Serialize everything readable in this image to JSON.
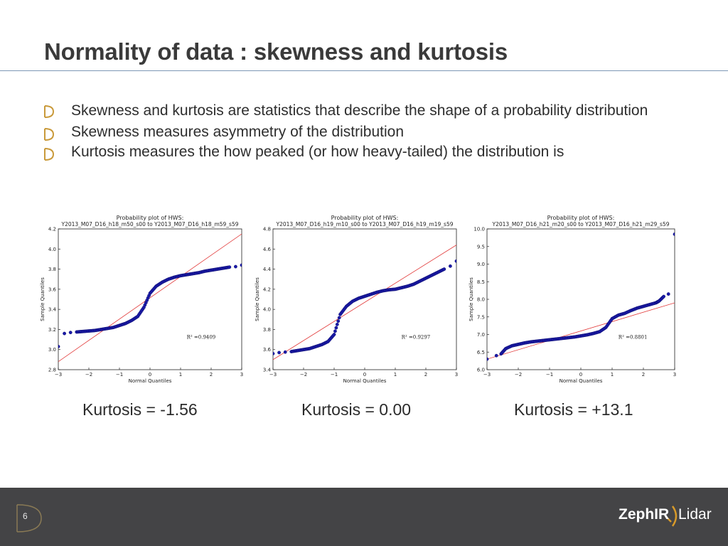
{
  "slide": {
    "title": "Normality of data : skewness and kurtosis",
    "bullets": [
      "Skewness and kurtosis are statistics that describe the shape of a probability distribution",
      "Skewness measures asymmetry of the distribution",
      "Kurtosis measures the how peaked (or how heavy-tailed) the distribution is"
    ],
    "page_number": "6",
    "logo": {
      "brand": "ZephIR",
      "product": "Lidar"
    }
  },
  "kurtosis_labels": [
    "Kurtosis = -1.56",
    "Kurtosis = 0.00",
    "Kurtosis = +13.1"
  ],
  "chart_data": [
    {
      "type": "scatter",
      "title": "Probability plot of HWS:",
      "subtitle": "Y2013_M07_D16_h18_m50_s00 to Y2013_M07_D16_h18_m59_s59",
      "xlabel": "Normal Quantiles",
      "ylabel": "Sample Quantiles",
      "xlim": [
        -3,
        3
      ],
      "ylim": [
        2.8,
        4.2
      ],
      "xticks": [
        "−3",
        "−2",
        "−1",
        "0",
        "1",
        "2",
        "3"
      ],
      "yticks": [
        "2.8",
        "3.0",
        "3.2",
        "3.4",
        "3.6",
        "3.8",
        "4.0",
        "4.2"
      ],
      "r2_label": "R² =0.9409",
      "fit_line": [
        [
          -3,
          2.88
        ],
        [
          3,
          4.15
        ]
      ],
      "points": [
        [
          -3.0,
          3.03
        ],
        [
          -2.8,
          3.16
        ],
        [
          -2.6,
          3.17
        ],
        [
          -2.4,
          3.175
        ],
        [
          -2.2,
          3.18
        ],
        [
          -2.0,
          3.185
        ],
        [
          -1.8,
          3.19
        ],
        [
          -1.6,
          3.2
        ],
        [
          -1.4,
          3.21
        ],
        [
          -1.2,
          3.22
        ],
        [
          -1.0,
          3.24
        ],
        [
          -0.8,
          3.26
        ],
        [
          -0.6,
          3.29
        ],
        [
          -0.4,
          3.33
        ],
        [
          -0.2,
          3.42
        ],
        [
          0.0,
          3.56
        ],
        [
          0.2,
          3.63
        ],
        [
          0.4,
          3.67
        ],
        [
          0.6,
          3.7
        ],
        [
          0.8,
          3.72
        ],
        [
          1.0,
          3.735
        ],
        [
          1.2,
          3.745
        ],
        [
          1.4,
          3.755
        ],
        [
          1.6,
          3.765
        ],
        [
          1.8,
          3.78
        ],
        [
          2.0,
          3.79
        ],
        [
          2.2,
          3.8
        ],
        [
          2.4,
          3.81
        ],
        [
          2.6,
          3.82
        ],
        [
          2.8,
          3.825
        ],
        [
          3.0,
          3.84
        ]
      ]
    },
    {
      "type": "scatter",
      "title": "Probability plot of HWS:",
      "subtitle": "Y2013_M07_D16_h19_m10_s00 to Y2013_M07_D16_h19_m19_s59",
      "xlabel": "Normal Quantiles",
      "ylabel": "Sample Quantiles",
      "xlim": [
        -3,
        3
      ],
      "ylim": [
        3.4,
        4.8
      ],
      "xticks": [
        "−3",
        "−2",
        "−1",
        "0",
        "1",
        "2",
        "3"
      ],
      "yticks": [
        "3.4",
        "3.6",
        "3.8",
        "4.0",
        "4.2",
        "4.4",
        "4.6",
        "4.8"
      ],
      "r2_label": "R² =0.9297",
      "fit_line": [
        [
          -3,
          3.5
        ],
        [
          3,
          4.64
        ]
      ],
      "points": [
        [
          -3.0,
          3.56
        ],
        [
          -2.8,
          3.57
        ],
        [
          -2.6,
          3.575
        ],
        [
          -2.4,
          3.58
        ],
        [
          -2.2,
          3.59
        ],
        [
          -2.0,
          3.6
        ],
        [
          -1.8,
          3.61
        ],
        [
          -1.6,
          3.63
        ],
        [
          -1.4,
          3.65
        ],
        [
          -1.2,
          3.68
        ],
        [
          -1.0,
          3.75
        ],
        [
          -0.8,
          3.95
        ],
        [
          -0.6,
          4.03
        ],
        [
          -0.4,
          4.08
        ],
        [
          -0.2,
          4.11
        ],
        [
          0.0,
          4.13
        ],
        [
          0.2,
          4.15
        ],
        [
          0.4,
          4.17
        ],
        [
          0.6,
          4.185
        ],
        [
          0.8,
          4.195
        ],
        [
          1.0,
          4.2
        ],
        [
          1.2,
          4.215
        ],
        [
          1.4,
          4.23
        ],
        [
          1.6,
          4.25
        ],
        [
          1.8,
          4.28
        ],
        [
          2.0,
          4.31
        ],
        [
          2.2,
          4.34
        ],
        [
          2.4,
          4.37
        ],
        [
          2.6,
          4.4
        ],
        [
          2.8,
          4.43
        ],
        [
          3.0,
          4.48
        ]
      ]
    },
    {
      "type": "scatter",
      "title": "Probability plot of HWS:",
      "subtitle": "Y2013_M07_D16_h21_m20_s00 to Y2013_M07_D16_h21_m29_s59",
      "xlabel": "Normal Quantiles",
      "ylabel": "Sample Quantiles",
      "xlim": [
        -3,
        3
      ],
      "ylim": [
        6.0,
        10.0
      ],
      "xticks": [
        "−3",
        "−2",
        "−1",
        "0",
        "1",
        "2",
        "3"
      ],
      "yticks": [
        "6.0",
        "6.5",
        "7.0",
        "7.5",
        "8.0",
        "8.5",
        "9.0",
        "9.5",
        "10.0"
      ],
      "r2_label": "R² =0.8801",
      "fit_line": [
        [
          -3,
          6.3
        ],
        [
          3,
          7.9
        ]
      ],
      "points": [
        [
          -3.0,
          6.3
        ],
        [
          -2.7,
          6.4
        ],
        [
          -2.55,
          6.45
        ],
        [
          -2.4,
          6.6
        ],
        [
          -2.2,
          6.68
        ],
        [
          -2.0,
          6.72
        ],
        [
          -1.8,
          6.76
        ],
        [
          -1.6,
          6.79
        ],
        [
          -1.4,
          6.81
        ],
        [
          -1.2,
          6.83
        ],
        [
          -1.0,
          6.85
        ],
        [
          -0.8,
          6.87
        ],
        [
          -0.6,
          6.89
        ],
        [
          -0.4,
          6.91
        ],
        [
          -0.2,
          6.93
        ],
        [
          0.0,
          6.96
        ],
        [
          0.2,
          6.99
        ],
        [
          0.4,
          7.03
        ],
        [
          0.6,
          7.08
        ],
        [
          0.8,
          7.2
        ],
        [
          1.0,
          7.45
        ],
        [
          1.2,
          7.55
        ],
        [
          1.4,
          7.6
        ],
        [
          1.6,
          7.68
        ],
        [
          1.8,
          7.75
        ],
        [
          2.0,
          7.8
        ],
        [
          2.2,
          7.85
        ],
        [
          2.4,
          7.9
        ],
        [
          2.5,
          7.95
        ],
        [
          2.65,
          8.08
        ],
        [
          2.8,
          8.15
        ],
        [
          3.0,
          9.85
        ]
      ]
    }
  ]
}
